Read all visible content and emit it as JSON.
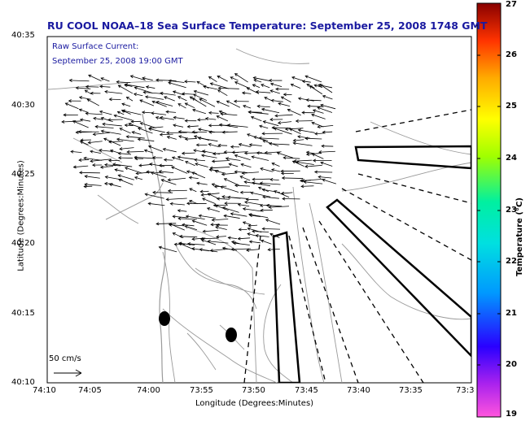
{
  "title": "RU COOL  NOAA–18  Sea Surface Temperature:  September 25, 2008 1748 GMT",
  "current_label": "Raw Surface Current:",
  "current_time": "September 25, 2008 19:00 GMT",
  "x_axis_label": "Longitude (Degrees:Minutes)",
  "y_axis_label": "Latitude (Degrees:Minutes)",
  "x_ticks": [
    "74:10",
    "74:05",
    "74:00",
    "73:55",
    "73:50",
    "73:45",
    "73:40",
    "73:35",
    "73:3"
  ],
  "y_ticks": [
    "40:35",
    "40:30",
    "40:25",
    "40:20",
    "40:15",
    "40:10"
  ],
  "scale_label": "50 cm/s",
  "colorbar": {
    "label": "Temperature (°C)",
    "min": 19,
    "max": 27,
    "ticks": [
      "27",
      "26",
      "25",
      "24",
      "23",
      "22",
      "21",
      "20",
      "19"
    ]
  },
  "colors": {
    "title": "#1a1aa0",
    "axes": "#000000",
    "bathymetry": "#999999"
  }
}
